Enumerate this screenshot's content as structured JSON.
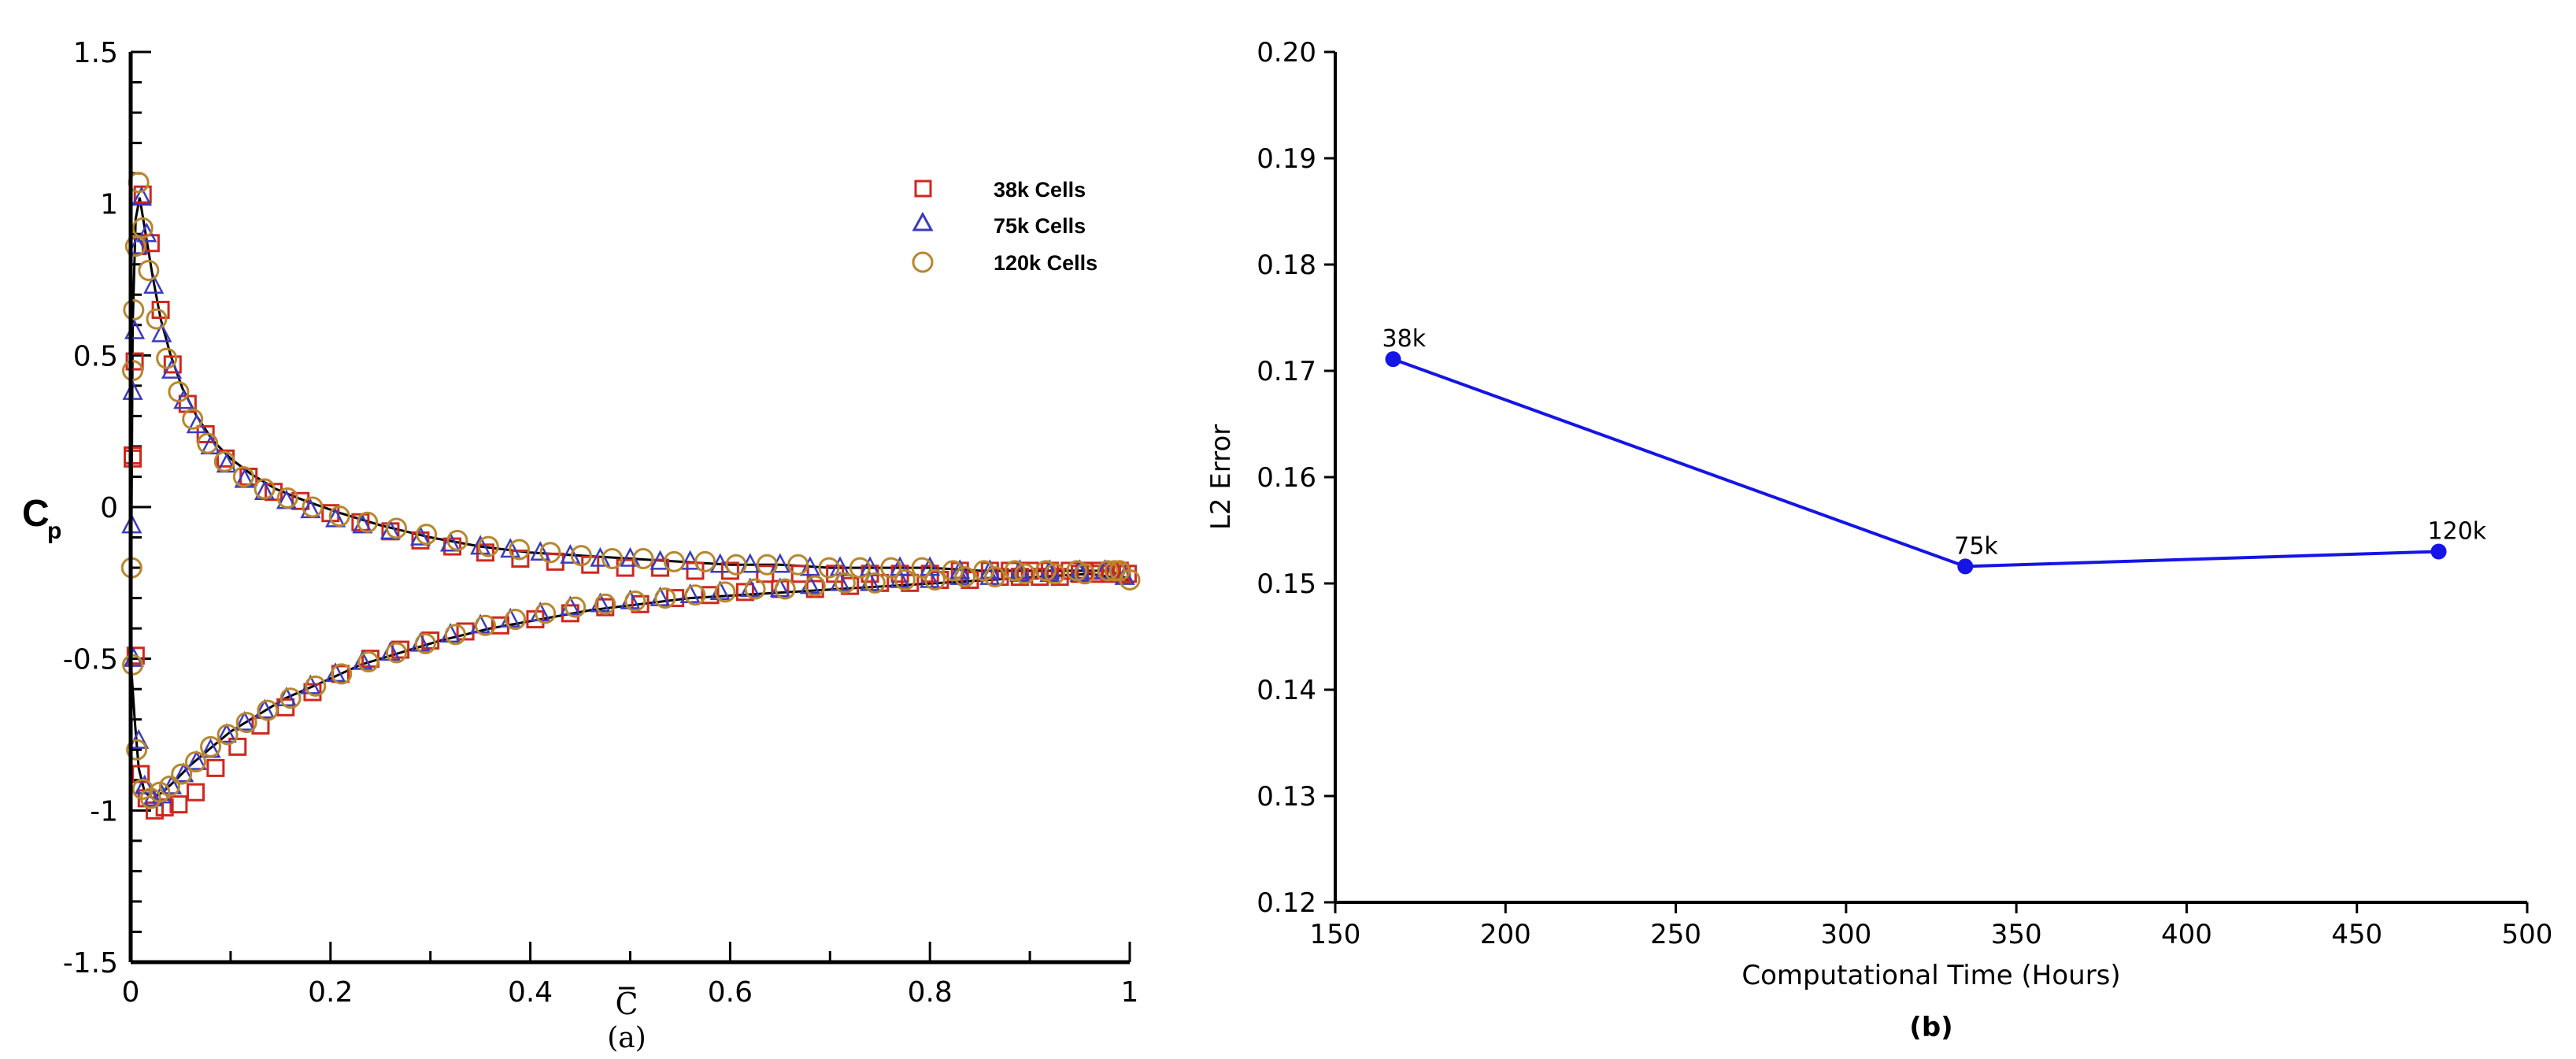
{
  "chart_data": [
    {
      "panel_label": "(a)",
      "type": "scatter",
      "xlabel": "C",
      "ylabel": "C",
      "ylabel_subscript": "p",
      "xlim": [
        0,
        1
      ],
      "ylim": [
        -1.5,
        1.5
      ],
      "xticks": [
        "0",
        "0.2",
        "0.4",
        "0.6",
        "0.8",
        "1"
      ],
      "yticks": [
        "1.5",
        "1",
        "0.5",
        "0",
        "-0.5",
        "-1",
        "-1.5"
      ],
      "legend_position": "top-right",
      "series": [
        {
          "name": "38k Cells",
          "marker": "square",
          "color": "#d0271d",
          "upper": {
            "x": [
              0.002,
              0.004,
              0.007,
              0.012,
              0.02,
              0.03,
              0.042,
              0.057,
              0.075,
              0.095,
              0.118,
              0.143,
              0.17,
              0.2,
              0.23,
              0.26,
              0.29,
              0.322,
              0.355,
              0.39,
              0.425,
              0.46,
              0.495,
              0.53,
              0.565,
              0.6,
              0.635,
              0.67,
              0.705,
              0.74,
              0.77,
              0.8,
              0.83,
              0.86,
              0.88,
              0.9,
              0.92,
              0.94,
              0.955,
              0.97,
              0.98,
              0.99,
              0.998
            ],
            "y": [
              0.17,
              0.48,
              0.86,
              1.03,
              0.87,
              0.65,
              0.47,
              0.34,
              0.24,
              0.16,
              0.1,
              0.05,
              0.02,
              -0.02,
              -0.05,
              -0.08,
              -0.11,
              -0.13,
              -0.15,
              -0.17,
              -0.18,
              -0.19,
              -0.2,
              -0.2,
              -0.21,
              -0.21,
              -0.22,
              -0.22,
              -0.22,
              -0.22,
              -0.22,
              -0.22,
              -0.21,
              -0.21,
              -0.21,
              -0.21,
              -0.21,
              -0.21,
              -0.21,
              -0.21,
              -0.21,
              -0.21,
              -0.22
            ]
          },
          "lower": {
            "x": [
              0.002,
              0.005,
              0.01,
              0.016,
              0.024,
              0.034,
              0.048,
              0.065,
              0.085,
              0.107,
              0.13,
              0.155,
              0.182,
              0.21,
              0.24,
              0.27,
              0.3,
              0.335,
              0.37,
              0.405,
              0.44,
              0.475,
              0.51,
              0.545,
              0.58,
              0.615,
              0.65,
              0.685,
              0.72,
              0.75,
              0.78,
              0.81,
              0.84,
              0.87,
              0.89,
              0.91,
              0.93,
              0.95,
              0.965,
              0.98,
              0.992
            ],
            "y": [
              0.16,
              -0.49,
              -0.88,
              -0.96,
              -1.0,
              -0.99,
              -0.98,
              -0.94,
              -0.86,
              -0.79,
              -0.72,
              -0.66,
              -0.61,
              -0.55,
              -0.5,
              -0.47,
              -0.44,
              -0.41,
              -0.39,
              -0.37,
              -0.35,
              -0.33,
              -0.32,
              -0.3,
              -0.29,
              -0.28,
              -0.27,
              -0.27,
              -0.26,
              -0.25,
              -0.25,
              -0.24,
              -0.24,
              -0.23,
              -0.23,
              -0.23,
              -0.23,
              -0.22,
              -0.22,
              -0.22,
              -0.22
            ]
          }
        },
        {
          "name": "75k Cells",
          "marker": "triangle",
          "color": "#3a3ac0",
          "upper": {
            "x": [
              0.001,
              0.002,
              0.004,
              0.007,
              0.011,
              0.016,
              0.023,
              0.031,
              0.041,
              0.053,
              0.066,
              0.08,
              0.096,
              0.114,
              0.134,
              0.156,
              0.18,
              0.205,
              0.232,
              0.26,
              0.29,
              0.32,
              0.35,
              0.38,
              0.41,
              0.44,
              0.47,
              0.5,
              0.53,
              0.56,
              0.59,
              0.62,
              0.65,
              0.68,
              0.71,
              0.74,
              0.77,
              0.8,
              0.83,
              0.86,
              0.89,
              0.92,
              0.95,
              0.975,
              0.995
            ],
            "y": [
              -0.06,
              0.38,
              0.58,
              0.86,
              1.02,
              0.9,
              0.73,
              0.57,
              0.45,
              0.35,
              0.27,
              0.2,
              0.14,
              0.09,
              0.05,
              0.02,
              -0.01,
              -0.04,
              -0.06,
              -0.08,
              -0.1,
              -0.12,
              -0.13,
              -0.14,
              -0.15,
              -0.16,
              -0.17,
              -0.17,
              -0.18,
              -0.18,
              -0.19,
              -0.19,
              -0.19,
              -0.2,
              -0.2,
              -0.2,
              -0.2,
              -0.2,
              -0.21,
              -0.21,
              -0.21,
              -0.21,
              -0.21,
              -0.21,
              -0.23
            ]
          },
          "lower": {
            "x": [
              0.003,
              0.008,
              0.014,
              0.022,
              0.031,
              0.041,
              0.053,
              0.066,
              0.08,
              0.096,
              0.114,
              0.134,
              0.156,
              0.18,
              0.205,
              0.232,
              0.26,
              0.29,
              0.32,
              0.35,
              0.38,
              0.41,
              0.44,
              0.47,
              0.5,
              0.53,
              0.56,
              0.59,
              0.62,
              0.65,
              0.68,
              0.71,
              0.74,
              0.77,
              0.8,
              0.83,
              0.86,
              0.89,
              0.92,
              0.95,
              0.975
            ],
            "y": [
              -0.5,
              -0.77,
              -0.92,
              -0.96,
              -0.95,
              -0.92,
              -0.88,
              -0.84,
              -0.8,
              -0.75,
              -0.71,
              -0.67,
              -0.63,
              -0.59,
              -0.55,
              -0.51,
              -0.48,
              -0.45,
              -0.42,
              -0.39,
              -0.37,
              -0.35,
              -0.33,
              -0.32,
              -0.31,
              -0.3,
              -0.29,
              -0.28,
              -0.27,
              -0.27,
              -0.26,
              -0.25,
              -0.25,
              -0.24,
              -0.24,
              -0.23,
              -0.23,
              -0.22,
              -0.22,
              -0.22,
              -0.21
            ]
          }
        },
        {
          "name": "120k Cells",
          "marker": "circle",
          "color": "#b8862d",
          "upper": {
            "x": [
              0.001,
              0.002,
              0.003,
              0.005,
              0.008,
              0.012,
              0.018,
              0.026,
              0.036,
              0.048,
              0.062,
              0.077,
              0.094,
              0.113,
              0.134,
              0.157,
              0.182,
              0.209,
              0.237,
              0.266,
              0.296,
              0.327,
              0.358,
              0.389,
              0.42,
              0.451,
              0.482,
              0.513,
              0.544,
              0.575,
              0.606,
              0.637,
              0.668,
              0.699,
              0.73,
              0.761,
              0.792,
              0.823,
              0.854,
              0.885,
              0.916,
              0.947,
              0.978,
              0.99,
              1.0
            ],
            "y": [
              -0.2,
              0.45,
              0.65,
              0.86,
              1.07,
              0.92,
              0.78,
              0.62,
              0.49,
              0.38,
              0.29,
              0.21,
              0.15,
              0.1,
              0.06,
              0.03,
              0.0,
              -0.03,
              -0.05,
              -0.07,
              -0.09,
              -0.11,
              -0.13,
              -0.14,
              -0.15,
              -0.16,
              -0.17,
              -0.17,
              -0.18,
              -0.18,
              -0.19,
              -0.19,
              -0.19,
              -0.2,
              -0.2,
              -0.2,
              -0.2,
              -0.21,
              -0.21,
              -0.21,
              -0.21,
              -0.21,
              -0.21,
              -0.21,
              -0.24
            ]
          },
          "lower": {
            "x": [
              0.002,
              0.006,
              0.012,
              0.02,
              0.029,
              0.039,
              0.051,
              0.065,
              0.08,
              0.097,
              0.116,
              0.137,
              0.16,
              0.185,
              0.211,
              0.238,
              0.266,
              0.295,
              0.325,
              0.355,
              0.385,
              0.415,
              0.445,
              0.475,
              0.505,
              0.535,
              0.565,
              0.595,
              0.625,
              0.655,
              0.685,
              0.715,
              0.745,
              0.775,
              0.805,
              0.835,
              0.865,
              0.895,
              0.925,
              0.955,
              0.985
            ],
            "y": [
              -0.52,
              -0.8,
              -0.93,
              -0.96,
              -0.94,
              -0.92,
              -0.88,
              -0.84,
              -0.79,
              -0.75,
              -0.71,
              -0.67,
              -0.63,
              -0.59,
              -0.55,
              -0.51,
              -0.48,
              -0.45,
              -0.42,
              -0.39,
              -0.37,
              -0.35,
              -0.33,
              -0.32,
              -0.31,
              -0.3,
              -0.29,
              -0.28,
              -0.27,
              -0.27,
              -0.26,
              -0.25,
              -0.25,
              -0.24,
              -0.24,
              -0.23,
              -0.23,
              -0.22,
              -0.22,
              -0.22,
              -0.21
            ]
          }
        }
      ],
      "reference_curve": {
        "color": "#000000",
        "upper": {
          "x": [
            0.0,
            0.002,
            0.005,
            0.009,
            0.015,
            0.022,
            0.03,
            0.04,
            0.052,
            0.066,
            0.082,
            0.1,
            0.12,
            0.145,
            0.175,
            0.21,
            0.25,
            0.3,
            0.35,
            0.4,
            0.45,
            0.5,
            0.55,
            0.6,
            0.65,
            0.7,
            0.75,
            0.8,
            0.85,
            0.9,
            0.95,
            0.98,
            1.0
          ],
          "y": [
            -0.5,
            0.6,
            0.95,
            1.02,
            0.9,
            0.76,
            0.62,
            0.5,
            0.39,
            0.3,
            0.22,
            0.16,
            0.11,
            0.06,
            0.02,
            -0.02,
            -0.06,
            -0.1,
            -0.13,
            -0.15,
            -0.16,
            -0.17,
            -0.18,
            -0.19,
            -0.19,
            -0.2,
            -0.2,
            -0.2,
            -0.21,
            -0.21,
            -0.21,
            -0.21,
            -0.24
          ]
        },
        "lower": {
          "x": [
            0.0,
            0.004,
            0.008,
            0.014,
            0.022,
            0.032,
            0.045,
            0.06,
            0.078,
            0.1,
            0.125,
            0.155,
            0.19,
            0.23,
            0.27,
            0.31,
            0.36,
            0.41,
            0.46,
            0.51,
            0.56,
            0.61,
            0.66,
            0.71,
            0.76,
            0.81,
            0.86,
            0.91,
            0.96,
            1.0
          ],
          "y": [
            -0.5,
            -0.7,
            -0.86,
            -0.94,
            -0.96,
            -0.94,
            -0.9,
            -0.85,
            -0.8,
            -0.74,
            -0.69,
            -0.63,
            -0.58,
            -0.52,
            -0.48,
            -0.44,
            -0.4,
            -0.37,
            -0.34,
            -0.32,
            -0.3,
            -0.29,
            -0.28,
            -0.27,
            -0.26,
            -0.25,
            -0.24,
            -0.23,
            -0.22,
            -0.24
          ]
        }
      }
    },
    {
      "panel_label": "(b)",
      "type": "line",
      "xlabel": "Computational Time (Hours)",
      "ylabel": "L2 Error",
      "xlim": [
        150,
        500
      ],
      "ylim": [
        0.12,
        0.2
      ],
      "xticks": [
        "150",
        "200",
        "250",
        "300",
        "350",
        "400",
        "450",
        "500"
      ],
      "yticks": [
        "0.12",
        "0.13",
        "0.14",
        "0.15",
        "0.16",
        "0.17",
        "0.18",
        "0.19",
        "0.20"
      ],
      "color": "#1515e6",
      "points": [
        {
          "x": 167,
          "y": 0.1711,
          "label": "38k"
        },
        {
          "x": 335,
          "y": 0.1516,
          "label": "75k"
        },
        {
          "x": 474,
          "y": 0.153,
          "label": "120k"
        }
      ]
    }
  ]
}
